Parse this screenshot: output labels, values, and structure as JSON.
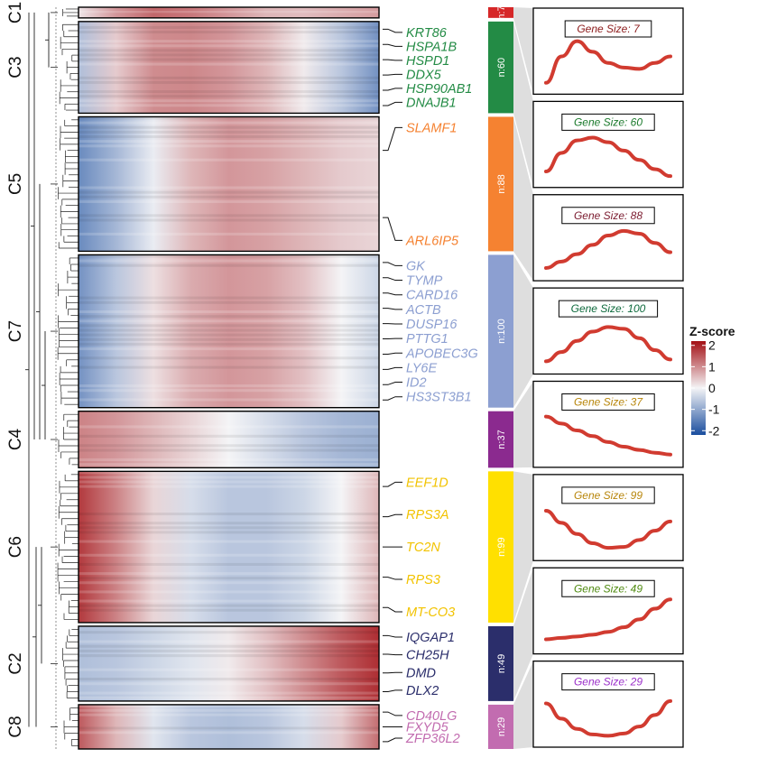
{
  "chart_data": {
    "type": "heatmap",
    "legend": {
      "title": "Z-score",
      "ticks": [
        2,
        1,
        0,
        -1,
        -2
      ],
      "range": [
        -2.2,
        2.2
      ],
      "colors": {
        "low": "#1a4d9e",
        "mid": "#f4f4f6",
        "high": "#a30f14"
      }
    },
    "clusters": [
      {
        "id": "C1",
        "n": 7,
        "n_label": "n:7",
        "color": "#d62728",
        "genes": [],
        "profile": [
          0.15,
          0.9,
          1.35,
          1.2,
          0.9,
          0.6,
          0.55,
          0.7,
          0.85
        ],
        "panel": {
          "label": "Gene Size: 7",
          "color": "#8b1a1a",
          "trend": [
            0.05,
            0.62,
            0.95,
            0.72,
            0.48,
            0.38,
            0.35,
            0.48,
            0.62
          ]
        }
      },
      {
        "id": "C3",
        "n": 60,
        "n_label": "n:60",
        "color": "#238b45",
        "genes": [
          "KRT86",
          "HSPA1B",
          "HSPD1",
          "DDX5",
          "HSP90AB1",
          "DNAJB1"
        ],
        "profile": [
          -0.7,
          0.4,
          1.0,
          1.05,
          0.9,
          0.6,
          0.1,
          -0.6,
          -1.3
        ],
        "panel": {
          "label": "Gene Size: 60",
          "color": "#1b7a2c",
          "trend": [
            0.15,
            0.55,
            0.82,
            0.88,
            0.78,
            0.6,
            0.4,
            0.2,
            0.05
          ]
        }
      },
      {
        "id": "C5",
        "n": 88,
        "n_label": "n:88",
        "color": "#f58231",
        "genes": [
          "SLAMF1",
          "ARL6IP5"
        ],
        "profile": [
          -1.4,
          -0.8,
          -0.1,
          0.6,
          0.9,
          0.8,
          0.6,
          0.4,
          0.3
        ],
        "panel": {
          "label": "Gene Size: 88",
          "color": "#7a1a2e",
          "trend": [
            0.08,
            0.22,
            0.38,
            0.58,
            0.78,
            0.88,
            0.82,
            0.62,
            0.42
          ]
        }
      },
      {
        "id": "C7",
        "n": 100,
        "n_label": "n:100",
        "color": "#8c9fd1",
        "genes": [
          "GK",
          "TYMP",
          "CARD16",
          "ACTB",
          "DUSP16",
          "PTTG1",
          "APOBEC3G",
          "LY6E",
          "ID2",
          "HS3ST3B1"
        ],
        "profile": [
          -1.3,
          -0.6,
          0.2,
          0.7,
          0.9,
          0.8,
          0.5,
          0.0,
          -0.4
        ],
        "panel": {
          "label": "Gene Size: 100",
          "color": "#0f6b3e",
          "trend": [
            0.08,
            0.28,
            0.52,
            0.72,
            0.82,
            0.78,
            0.58,
            0.32,
            0.12
          ]
        }
      },
      {
        "id": "C4",
        "n": 37,
        "n_label": "n:37",
        "color": "#8b2a8f",
        "genes": [],
        "profile": [
          1.1,
          0.9,
          0.6,
          0.3,
          0.0,
          -0.3,
          -0.6,
          -0.8,
          -0.9
        ],
        "panel": {
          "label": "Gene Size: 37",
          "color": "#b8860b",
          "trend": [
            0.9,
            0.75,
            0.6,
            0.48,
            0.35,
            0.25,
            0.18,
            0.12,
            0.08
          ]
        }
      },
      {
        "id": "C6",
        "n": 99,
        "n_label": "n:99",
        "color": "#ffe000",
        "genes": [
          "EEF1D",
          "RPS3A",
          "TC2N",
          "RPS3",
          "MT-CO3"
        ],
        "profile": [
          1.8,
          1.1,
          0.3,
          -0.3,
          -0.6,
          -0.6,
          -0.4,
          0.0,
          0.6
        ],
        "panel": {
          "label": "Gene Size: 99",
          "color": "#b8860b",
          "trend": [
            0.88,
            0.62,
            0.38,
            0.18,
            0.08,
            0.1,
            0.25,
            0.45,
            0.65
          ]
        }
      },
      {
        "id": "C2",
        "n": 49,
        "n_label": "n:49",
        "color": "#2b2e6b",
        "genes": [
          "IQGAP1",
          "CH25H",
          "DMD",
          "DLX2"
        ],
        "profile": [
          -0.7,
          -0.6,
          -0.4,
          -0.2,
          0.1,
          0.5,
          1.0,
          1.5,
          1.9
        ],
        "panel": {
          "label": "Gene Size: 49",
          "color": "#4f8a10",
          "trend": [
            0.12,
            0.15,
            0.18,
            0.22,
            0.28,
            0.38,
            0.55,
            0.78,
            0.98
          ]
        }
      },
      {
        "id": "C8",
        "n": 29,
        "n_label": "n:29",
        "color": "#c26cb0",
        "genes": [
          "CD40LG",
          "FXYD5",
          "ZFP36L2"
        ],
        "profile": [
          1.5,
          0.6,
          -0.2,
          -0.6,
          -0.7,
          -0.6,
          -0.3,
          0.4,
          1.3
        ],
        "panel": {
          "label": "Gene Size: 29",
          "color": "#9b30c9",
          "trend": [
            0.75,
            0.42,
            0.2,
            0.08,
            0.05,
            0.1,
            0.25,
            0.5,
            0.8
          ]
        }
      }
    ]
  }
}
